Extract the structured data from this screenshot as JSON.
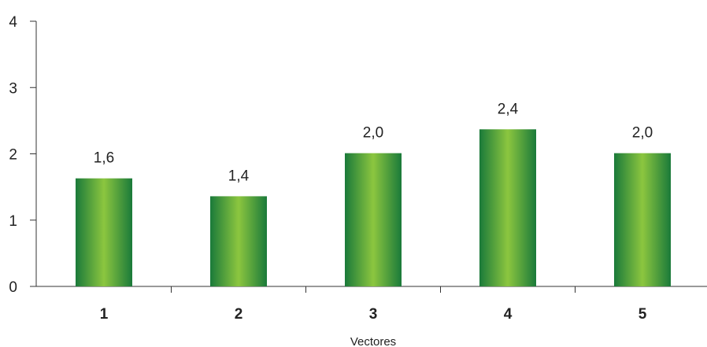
{
  "chart_data": {
    "type": "bar",
    "categories": [
      "1",
      "2",
      "3",
      "4",
      "5"
    ],
    "values": [
      1.63,
      1.36,
      2.01,
      2.37,
      2.01
    ],
    "data_labels": [
      "1,6",
      "1,4",
      "2,0",
      "2,4",
      "2,0"
    ],
    "xlabel": "Vectores",
    "ylabel": "",
    "ylim": [
      0,
      4
    ],
    "yticks": [
      "0",
      "1",
      "2",
      "3",
      "4"
    ],
    "grid": false,
    "colors": {
      "bar_edge": "#1a7a3a",
      "bar_center": "#8cc63f",
      "axis": "#333333",
      "text": "#222222"
    }
  }
}
